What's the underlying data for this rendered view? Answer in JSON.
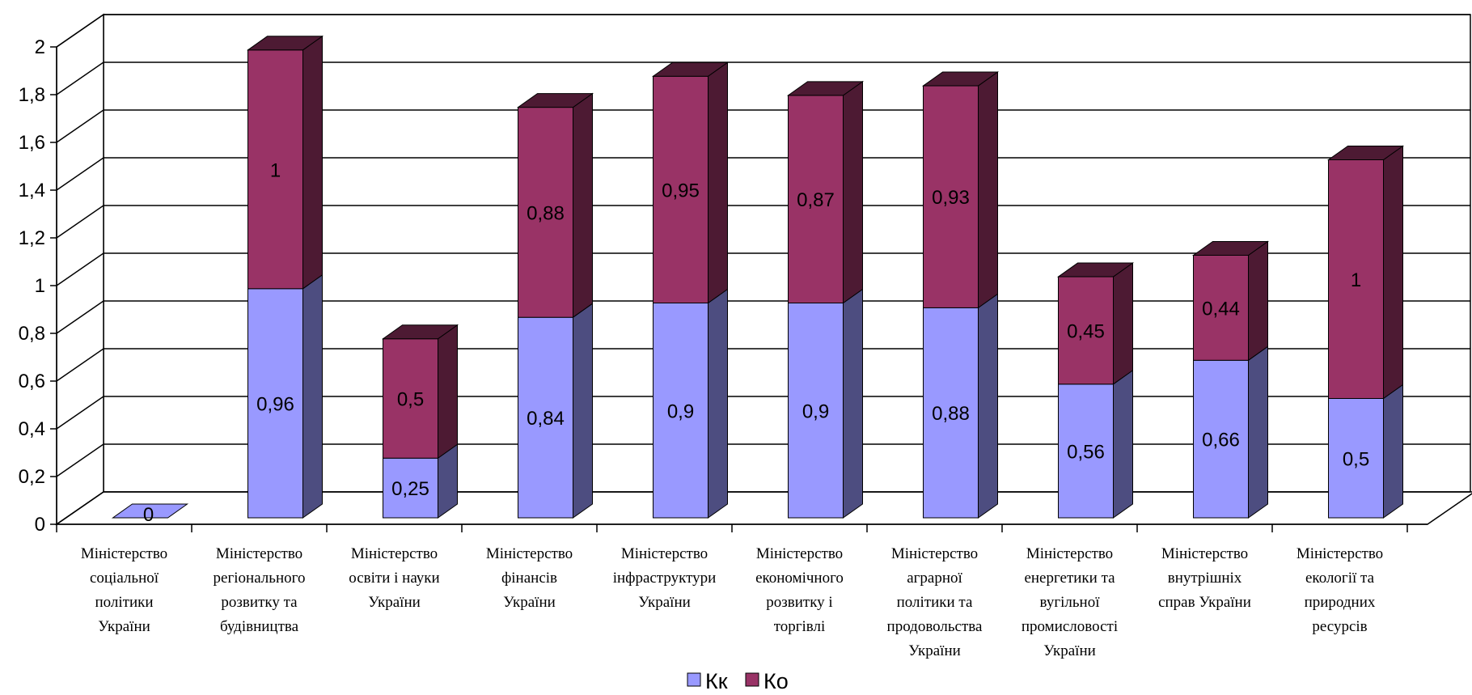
{
  "chart_data": {
    "type": "bar",
    "stacked": true,
    "three_d": true,
    "categories": [
      [
        "Міністерство",
        "соціальної",
        "політики",
        "України"
      ],
      [
        "Міністерство",
        "регіонального",
        "розвитку та",
        "будівництва"
      ],
      [
        "Міністерство",
        "освіти і науки",
        "України"
      ],
      [
        "Міністерство",
        "фінансів",
        "України"
      ],
      [
        "Міністерство",
        "інфраструктури",
        "України"
      ],
      [
        "Міністерство",
        "економічного",
        "розвитку і",
        "торгівлі"
      ],
      [
        "Міністерство",
        "аграрної",
        "політики та",
        "продовольства",
        "України"
      ],
      [
        "Міністерство",
        "енергетики та",
        "вугільної",
        "промисловості",
        "України"
      ],
      [
        "Міністерство",
        "внутрішніх",
        "справ України"
      ],
      [
        "Міністерство",
        "екології та",
        "природних",
        "ресурсів"
      ]
    ],
    "series": [
      {
        "name": "Кк",
        "values": [
          0,
          0.96,
          0.25,
          0.84,
          0.9,
          0.9,
          0.88,
          0.56,
          0.66,
          0.5
        ],
        "labels": [
          "0",
          "0,96",
          "0,25",
          "0,84",
          "0,9",
          "0,9",
          "0,88",
          "0,56",
          "0,66",
          "0,5"
        ],
        "color": "#9999ff",
        "side_color": "#4d4d80"
      },
      {
        "name": "Ко",
        "values": [
          0,
          1,
          0.5,
          0.88,
          0.95,
          0.87,
          0.93,
          0.45,
          0.44,
          1
        ],
        "labels": [
          "",
          "1",
          "0,5",
          "0,88",
          "0,95",
          "0,87",
          "0,93",
          "0,45",
          "0,44",
          "1"
        ],
        "color": "#993366",
        "side_color": "#4d1a33"
      }
    ],
    "y_ticks": [
      "0",
      "0,2",
      "0,4",
      "0,6",
      "0,8",
      "1",
      "1,2",
      "1,4",
      "1,6",
      "1,8",
      "2"
    ],
    "ylim": [
      0,
      2
    ],
    "grid": true,
    "legend": "bottom"
  }
}
